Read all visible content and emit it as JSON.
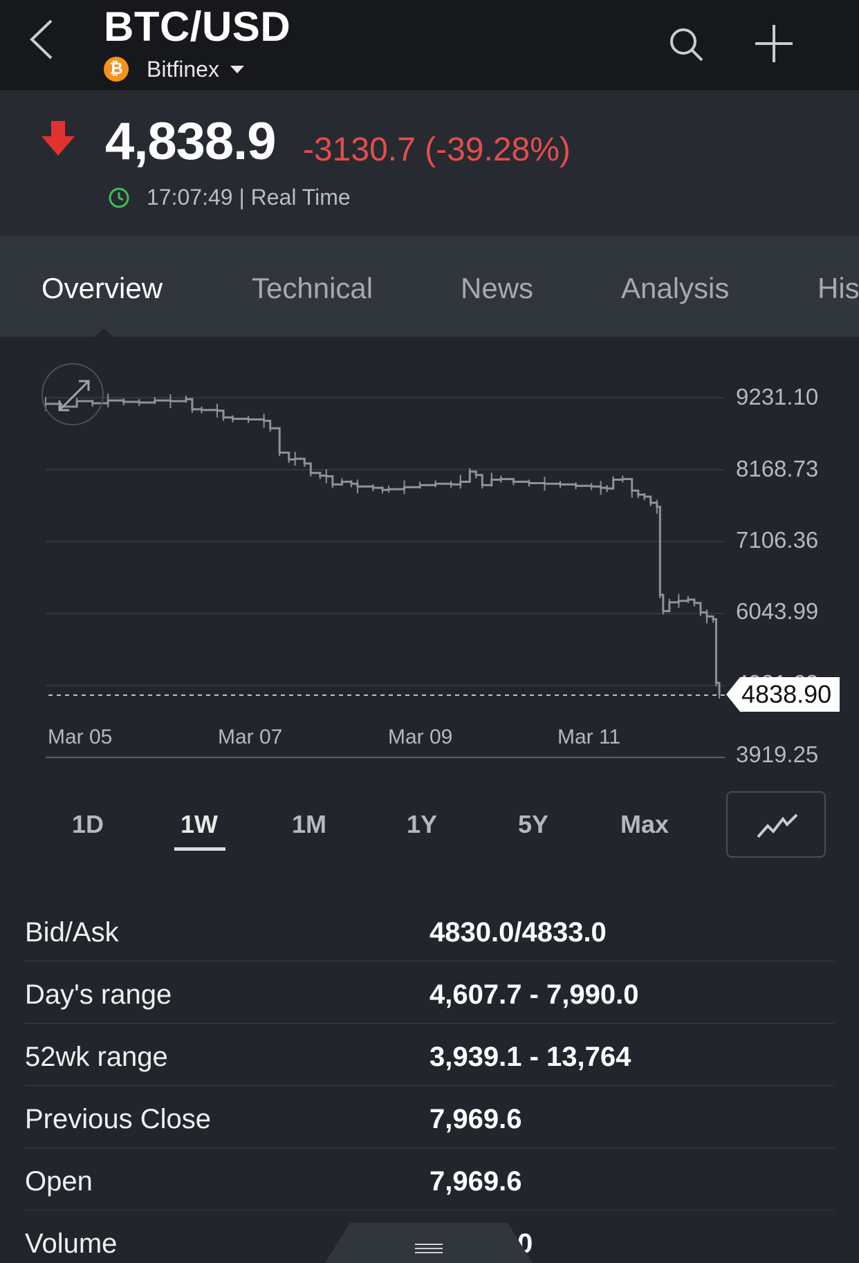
{
  "header": {
    "title": "BTC/USD",
    "exchange": "Bitfinex",
    "exchange_logo_glyph": "₿"
  },
  "quote": {
    "last_price": "4,838.9",
    "change": "-3130.7 (-39.28%)",
    "time": "17:07:49 | Real Time",
    "direction": "down",
    "change_color": "#e74c4c"
  },
  "tabs": [
    {
      "label": "Overview",
      "active": true
    },
    {
      "label": "Technical",
      "active": false
    },
    {
      "label": "News",
      "active": false
    },
    {
      "label": "Analysis",
      "active": false
    },
    {
      "label": "His",
      "active": false
    }
  ],
  "chart_data": {
    "type": "line",
    "y_ticks": [
      "9231.10",
      "8168.73",
      "7106.36",
      "6043.99",
      "4981.62",
      "3919.25"
    ],
    "x_ticks": [
      "Mar 05",
      "Mar 07",
      "Mar 09",
      "Mar 11"
    ],
    "ylim": [
      3919.25,
      9231.1
    ],
    "current_price_label": "4838.90",
    "current_price": 4838.9,
    "points": [
      [
        0,
        9140
      ],
      [
        5,
        9100
      ],
      [
        10,
        9180
      ],
      [
        15,
        9150
      ],
      [
        20,
        9190
      ],
      [
        25,
        9170
      ],
      [
        30,
        9160
      ],
      [
        35,
        9190
      ],
      [
        40,
        9180
      ],
      [
        45,
        9210
      ],
      [
        47,
        9060
      ],
      [
        50,
        9050
      ],
      [
        55,
        9040
      ],
      [
        57,
        8940
      ],
      [
        60,
        8920
      ],
      [
        65,
        8910
      ],
      [
        70,
        8890
      ],
      [
        72,
        8780
      ],
      [
        75,
        8420
      ],
      [
        78,
        8320
      ],
      [
        80,
        8330
      ],
      [
        83,
        8260
      ],
      [
        85,
        8120
      ],
      [
        88,
        8080
      ],
      [
        90,
        8070
      ],
      [
        92,
        7950
      ],
      [
        95,
        7990
      ],
      [
        98,
        7960
      ],
      [
        100,
        7920
      ],
      [
        105,
        7900
      ],
      [
        108,
        7870
      ],
      [
        110,
        7880
      ],
      [
        115,
        7910
      ],
      [
        120,
        7940
      ],
      [
        125,
        7960
      ],
      [
        130,
        7950
      ],
      [
        133,
        7990
      ],
      [
        136,
        8140
      ],
      [
        138,
        8090
      ],
      [
        140,
        7940
      ],
      [
        143,
        8020
      ],
      [
        146,
        8030
      ],
      [
        150,
        7990
      ],
      [
        155,
        7970
      ],
      [
        160,
        7960
      ],
      [
        165,
        7950
      ],
      [
        170,
        7930
      ],
      [
        175,
        7920
      ],
      [
        178,
        7900
      ],
      [
        180,
        7890
      ],
      [
        182,
        8020
      ],
      [
        185,
        8030
      ],
      [
        188,
        7860
      ],
      [
        190,
        7800
      ],
      [
        192,
        7770
      ],
      [
        194,
        7680
      ],
      [
        196,
        7620
      ],
      [
        197,
        6320
      ],
      [
        198,
        6080
      ],
      [
        200,
        6210
      ],
      [
        203,
        6230
      ],
      [
        206,
        6250
      ],
      [
        208,
        6200
      ],
      [
        210,
        6060
      ],
      [
        212,
        6000
      ],
      [
        214,
        5960
      ],
      [
        215,
        5020
      ],
      [
        216,
        4840
      ]
    ]
  },
  "ranges": [
    {
      "label": "1D",
      "active": false
    },
    {
      "label": "1W",
      "active": true
    },
    {
      "label": "1M",
      "active": false
    },
    {
      "label": "1Y",
      "active": false
    },
    {
      "label": "5Y",
      "active": false
    },
    {
      "label": "Max",
      "active": false
    }
  ],
  "stats": [
    {
      "label": "Bid/Ask",
      "value": "4830.0/4833.0"
    },
    {
      "label": "Day's range",
      "value": "4,607.7 - 7,990.0"
    },
    {
      "label": "52wk range",
      "value": "3,939.1 - 13,764"
    },
    {
      "label": "Previous Close",
      "value": "7,969.6"
    },
    {
      "label": "Open",
      "value": "7,969.6"
    },
    {
      "label": "Volume",
      "value": "0"
    }
  ]
}
